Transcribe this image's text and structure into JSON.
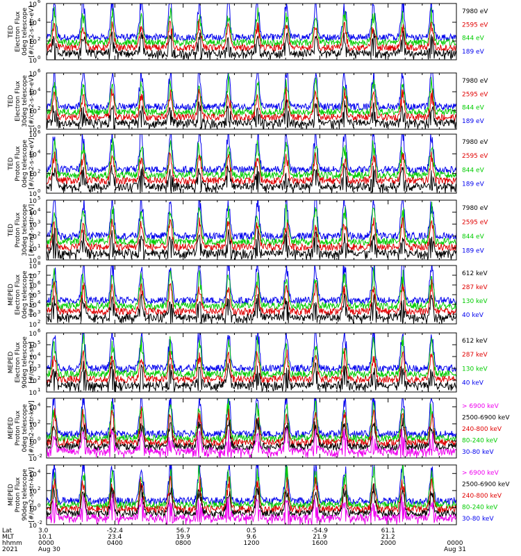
{
  "chart_data": [
    {
      "type": "line",
      "ylabel_lines": [
        "TED",
        "Electron Flux",
        "0deg telescope",
        "[#/cm2-s-str-eV]"
      ],
      "y_exp_range": [
        0,
        6
      ],
      "y_tick_labels": [
        "10",
        "10",
        "10",
        "10"
      ],
      "y_tick_exps": [
        "0",
        "2",
        "4",
        "6"
      ],
      "series": [
        {
          "name": "7980 eV",
          "color": "#000000"
        },
        {
          "name": "2595 eV",
          "color": "#e00000"
        },
        {
          "name": "844 eV",
          "color": "#00cc00"
        },
        {
          "name": "189 eV",
          "color": "#0000ee"
        }
      ]
    },
    {
      "type": "line",
      "ylabel_lines": [
        "TED",
        "Electron Flux",
        "30deg telescope",
        "[#/cm2-s-str-eV]"
      ],
      "y_exp_range": [
        0,
        6
      ],
      "y_tick_labels": [
        "10",
        "10",
        "10",
        "10"
      ],
      "y_tick_exps": [
        "0",
        "2",
        "4",
        "6"
      ],
      "series": [
        {
          "name": "7980 eV",
          "color": "#000000"
        },
        {
          "name": "2595 eV",
          "color": "#e00000"
        },
        {
          "name": "844 eV",
          "color": "#00cc00"
        },
        {
          "name": "189 eV",
          "color": "#0000ee"
        }
      ]
    },
    {
      "type": "line",
      "ylabel_lines": [
        "TED",
        "Proton Flux",
        "0deg telescope",
        "[#/cm2-s-str-eV]"
      ],
      "y_exp_range": [
        0,
        6
      ],
      "y_tick_labels": [
        "10",
        "10",
        "10",
        "10"
      ],
      "y_tick_exps": [
        "0",
        "2",
        "4",
        "6"
      ],
      "series": [
        {
          "name": "7980 eV",
          "color": "#000000"
        },
        {
          "name": "2595 eV",
          "color": "#e00000"
        },
        {
          "name": "844 eV",
          "color": "#00cc00"
        },
        {
          "name": "189 eV",
          "color": "#0000ee"
        }
      ]
    },
    {
      "type": "line",
      "ylabel_lines": [
        "TED",
        "Proton Flux",
        "30deg telescope",
        "[#/cm2-s-str-eV]"
      ],
      "y_exp_range": [
        0,
        5
      ],
      "y_tick_labels": [
        "10",
        "10",
        "10",
        "10",
        "10",
        "10"
      ],
      "y_tick_exps": [
        "0",
        "1",
        "2",
        "3",
        "4",
        "5"
      ],
      "series": [
        {
          "name": "7980 eV",
          "color": "#000000"
        },
        {
          "name": "2595 eV",
          "color": "#e00000"
        },
        {
          "name": "844 eV",
          "color": "#00cc00"
        },
        {
          "name": "189 eV",
          "color": "#0000ee"
        }
      ]
    },
    {
      "type": "line",
      "ylabel_lines": [
        "MEPED",
        "Electron Flux",
        "0deg telescope",
        "[#/cm2-s-str]"
      ],
      "y_exp_range": [
        2,
        8
      ],
      "y_tick_labels": [
        "10",
        "10",
        "10",
        "10",
        "10",
        "10",
        "10"
      ],
      "y_tick_exps": [
        "2",
        "3",
        "4",
        "5",
        "6",
        "7",
        "8"
      ],
      "series": [
        {
          "name": "612 keV",
          "color": "#000000"
        },
        {
          "name": "287 keV",
          "color": "#e00000"
        },
        {
          "name": "130 keV",
          "color": "#00cc00"
        },
        {
          "name": "40 keV",
          "color": "#0000ee"
        }
      ]
    },
    {
      "type": "line",
      "ylabel_lines": [
        "MEPED",
        "Electron Flux",
        "90deg telescope",
        "[#/cm2-s-str]"
      ],
      "y_exp_range": [
        1,
        6
      ],
      "y_tick_labels": [
        "10",
        "10",
        "10",
        "10",
        "10",
        "10"
      ],
      "y_tick_exps": [
        "1",
        "2",
        "3",
        "4",
        "5",
        "6"
      ],
      "series": [
        {
          "name": "612 keV",
          "color": "#000000"
        },
        {
          "name": "287 keV",
          "color": "#e00000"
        },
        {
          "name": "130 keV",
          "color": "#00cc00"
        },
        {
          "name": "40 keV",
          "color": "#0000ee"
        }
      ]
    },
    {
      "type": "line",
      "ylabel_lines": [
        "MEPED",
        "Proton Flux",
        "0deg telescope",
        "[#/cm2-s-str-keV]"
      ],
      "y_exp_range": [
        -2,
        5
      ],
      "y_tick_labels": [
        "10",
        "10",
        "10",
        "10"
      ],
      "y_tick_exps": [
        "-2",
        "0",
        "2",
        "4"
      ],
      "series": [
        {
          "name": "> 6900 keV",
          "color": "#ee00ee"
        },
        {
          "name": "2500-6900 keV",
          "color": "#000000"
        },
        {
          "name": "240-800 keV",
          "color": "#e00000"
        },
        {
          "name": "80-240 keV",
          "color": "#00cc00"
        },
        {
          "name": "30-80 keV",
          "color": "#0000ee"
        }
      ]
    },
    {
      "type": "line",
      "ylabel_lines": [
        "MEPED",
        "Proton Flux",
        "90deg telescope",
        "[#/cm2-s-str-keV]"
      ],
      "y_exp_range": [
        -2,
        5
      ],
      "y_tick_labels": [
        "10",
        "10",
        "10",
        "10"
      ],
      "y_tick_exps": [
        "-2",
        "0",
        "2",
        "4"
      ],
      "series": [
        {
          "name": "> 6900 keV",
          "color": "#ee00ee"
        },
        {
          "name": "2500-6900 keV",
          "color": "#000000"
        },
        {
          "name": "240-800 keV",
          "color": "#e00000"
        },
        {
          "name": "80-240 keV",
          "color": "#00cc00"
        },
        {
          "name": "30-80 keV",
          "color": "#0000ee"
        }
      ]
    }
  ],
  "x_axis": {
    "row_labels": [
      "Lat",
      "MLT",
      "hhmm",
      "2021"
    ],
    "ticks": [
      {
        "lat": "3.0",
        "mlt": "10.1",
        "hhmm": "0000",
        "date": "Aug 30"
      },
      {
        "lat": "-52.4",
        "mlt": "23.4",
        "hhmm": "0400",
        "date": ""
      },
      {
        "lat": "56.7",
        "mlt": "19.9",
        "hhmm": "0800",
        "date": ""
      },
      {
        "lat": "0.5",
        "mlt": "9.6",
        "hhmm": "1200",
        "date": ""
      },
      {
        "lat": "-54.9",
        "mlt": "21.9",
        "hhmm": "1600",
        "date": ""
      },
      {
        "lat": "61.1",
        "mlt": "21.2",
        "hhmm": "2000",
        "date": ""
      },
      {
        "lat": "",
        "mlt": "",
        "hhmm": "0000",
        "date": "Aug 31"
      }
    ],
    "range_hours": [
      0,
      24
    ]
  }
}
